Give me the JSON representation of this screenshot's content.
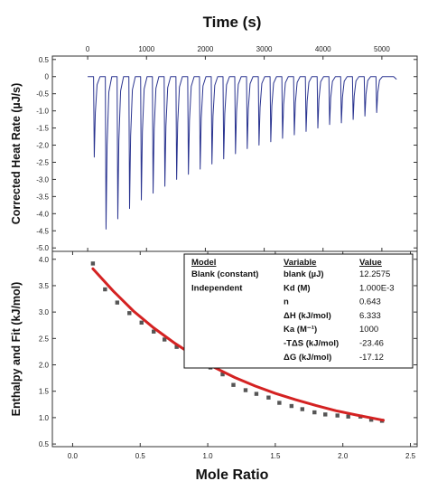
{
  "top_axis_label": "Time (s)",
  "bottom_axis_label": "Mole Ratio",
  "chart_data": [
    {
      "type": "line",
      "ylabel": "Corrected Heat Rate (µJ/s)",
      "xlim": [
        -600,
        5600
      ],
      "ylim": [
        -5.1,
        0.6
      ],
      "x_ticks": [
        0,
        1000,
        2000,
        3000,
        4000,
        5000
      ],
      "y_ticks": [
        0.5,
        0.0,
        -0.5,
        -1.0,
        -1.5,
        -2.0,
        -2.5,
        -3.0,
        -3.5,
        -4.0,
        -4.5,
        -5.0
      ],
      "y_tick_labels": [
        "0.5",
        "0",
        "-0.5",
        "-1.0",
        "-1.5",
        "-2.0",
        "-2.5",
        "-3.0",
        "-3.5",
        "-4.0",
        "-4.5",
        "-5.0"
      ],
      "baseline": 0.0,
      "injection_times": [
        100,
        300,
        500,
        700,
        900,
        1100,
        1300,
        1500,
        1700,
        1900,
        2100,
        2300,
        2500,
        2700,
        2900,
        3100,
        3300,
        3500,
        3700,
        3900,
        4100,
        4300,
        4500,
        4700,
        4900
      ],
      "peak_minima": [
        -2.35,
        -4.45,
        -4.15,
        -3.85,
        -3.6,
        -3.4,
        -3.2,
        -3.0,
        -2.85,
        -2.7,
        -2.55,
        -2.4,
        -2.25,
        -2.1,
        -2.0,
        -1.9,
        -1.8,
        -1.7,
        -1.6,
        -1.5,
        -1.4,
        -1.35,
        -1.25,
        -1.15,
        -1.05
      ],
      "line_color": "#2a3490"
    },
    {
      "type": "scatter",
      "ylabel": "Enthalpy and Fit (kJ/mol)",
      "xlim": [
        -0.15,
        2.55
      ],
      "ylim": [
        0.45,
        4.15
      ],
      "x_ticks": [
        0.0,
        0.5,
        1.0,
        1.5,
        2.0,
        2.5
      ],
      "x_tick_labels": [
        "0.0",
        "0.5",
        "1.0",
        "1.5",
        "2.0",
        "2.5"
      ],
      "y_ticks": [
        0.5,
        1.0,
        1.5,
        2.0,
        2.5,
        3.0,
        3.5,
        4.0
      ],
      "y_tick_labels": [
        "0.5",
        "1.0",
        "1.5",
        "2.0",
        "2.5",
        "3.0",
        "3.5",
        "4.0"
      ],
      "points": {
        "x": [
          0.15,
          0.24,
          0.33,
          0.42,
          0.51,
          0.6,
          0.68,
          0.77,
          0.85,
          0.94,
          1.02,
          1.11,
          1.19,
          1.28,
          1.36,
          1.45,
          1.53,
          1.62,
          1.7,
          1.79,
          1.87,
          1.96,
          2.04,
          2.13,
          2.21,
          2.29
        ],
        "y": [
          3.92,
          3.43,
          3.18,
          2.98,
          2.8,
          2.63,
          2.48,
          2.34,
          2.22,
          2.1,
          1.95,
          1.82,
          1.62,
          1.52,
          1.45,
          1.38,
          1.28,
          1.22,
          1.16,
          1.1,
          1.06,
          1.04,
          1.02,
          1.02,
          0.96,
          0.94
        ]
      },
      "fit": {
        "x": [
          0.15,
          0.3,
          0.45,
          0.6,
          0.75,
          0.9,
          1.05,
          1.2,
          1.35,
          1.5,
          1.65,
          1.8,
          1.95,
          2.1,
          2.3
        ],
        "y": [
          3.82,
          3.4,
          3.02,
          2.7,
          2.42,
          2.17,
          1.95,
          1.76,
          1.6,
          1.46,
          1.34,
          1.23,
          1.13,
          1.05,
          0.95
        ]
      },
      "point_color": "#555555",
      "fit_color": "#d42222"
    }
  ],
  "fit_table": {
    "headers": [
      "Model",
      "Variable",
      "Value"
    ],
    "rows": [
      [
        "Blank (constant)",
        "blank (µJ)",
        "12.2575"
      ],
      [
        "Independent",
        "Kd (M)",
        "1.000E-3"
      ],
      [
        "",
        "n",
        "0.643"
      ],
      [
        "",
        "ΔH (kJ/mol)",
        "6.333"
      ],
      [
        "",
        "Ka (M⁻¹)",
        "1000"
      ],
      [
        "",
        "-TΔS (kJ/mol)",
        "-23.46"
      ],
      [
        "",
        "ΔG (kJ/mol)",
        "-17.12"
      ]
    ]
  }
}
